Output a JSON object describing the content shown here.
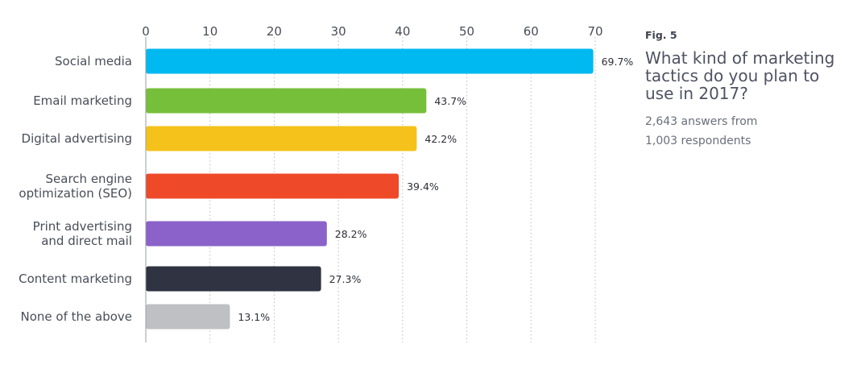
{
  "figure": {
    "label": "Fig. 5",
    "title": "What kind of marketing tactics do you plan to use in 2017?",
    "subtitle_line1": "2,643 answers from",
    "subtitle_line2": "1,003 respondents"
  },
  "chart_data": {
    "type": "bar",
    "orientation": "horizontal",
    "categories": [
      [
        "Social media"
      ],
      [
        "Email marketing"
      ],
      [
        "Digital advertising"
      ],
      [
        "Search engine",
        "optimization (SEO)"
      ],
      [
        "Print advertising",
        "and direct mail"
      ],
      [
        "Content marketing"
      ],
      [
        "None of the above"
      ]
    ],
    "values": [
      69.7,
      43.7,
      42.2,
      39.4,
      28.2,
      27.3,
      13.1
    ],
    "value_labels": [
      "69.7%",
      "43.7%",
      "42.2%",
      "39.4%",
      "28.2%",
      "27.3%",
      "13.1%"
    ],
    "colors": [
      "#00b9f1",
      "#76bf3a",
      "#f5c21b",
      "#ee4a2a",
      "#8a62c9",
      "#2f3342",
      "#bfc0c4"
    ],
    "xticks": [
      0,
      10,
      20,
      30,
      40,
      50,
      60,
      70
    ],
    "xlim": [
      0,
      70
    ],
    "xaxis_position": "top",
    "grid": "dotted-vertical",
    "title": "What kind of marketing tactics do you plan to use in 2017?",
    "xlabel": "",
    "ylabel": ""
  }
}
